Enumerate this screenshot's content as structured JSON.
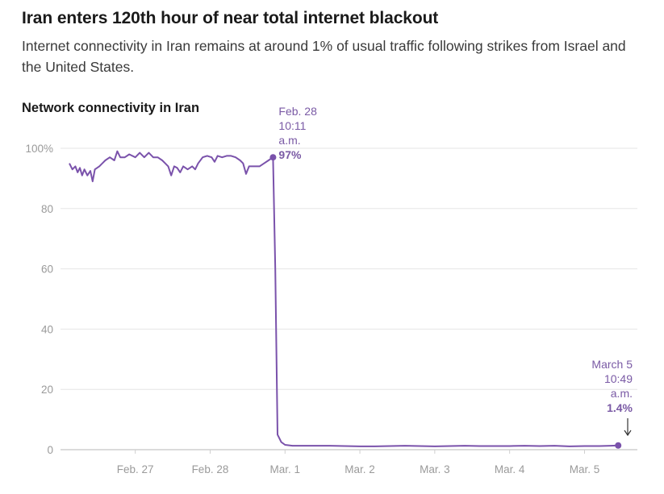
{
  "headline": "Iran enters 120th hour of near total internet blackout",
  "subheadline": "Internet connectivity in Iran remains at around 1% of usual traffic following strikes from Israel and the United States.",
  "colors": {
    "line": "#7a52ab",
    "annotation": "#7a5aa5",
    "grid": "#e6e6e6",
    "axis": "#cfcfcf",
    "tick_text": "#9a9a9a"
  },
  "chart_data": {
    "type": "line",
    "title": "Network connectivity in Iran",
    "xlabel": "",
    "ylabel": "",
    "ylim": [
      0,
      100
    ],
    "y_ticks": [
      0,
      20,
      40,
      60,
      80,
      100
    ],
    "y_tick_labels": [
      "0",
      "20",
      "40",
      "60",
      "80",
      "100%"
    ],
    "x_ticks": [
      {
        "day": 1,
        "label": "Feb. 27"
      },
      {
        "day": 2,
        "label": "Feb. 28"
      },
      {
        "day": 3,
        "label": "Mar. 1"
      },
      {
        "day": 4,
        "label": "Mar. 2"
      },
      {
        "day": 5,
        "label": "Mar. 3"
      },
      {
        "day": 6,
        "label": "Mar. 4"
      },
      {
        "day": 7,
        "label": "Mar. 5"
      }
    ],
    "xlim": [
      0.05,
      7.6
    ],
    "grid": true,
    "series": [
      {
        "points": [
          [
            0.12,
            95
          ],
          [
            0.16,
            93
          ],
          [
            0.2,
            94
          ],
          [
            0.23,
            92
          ],
          [
            0.26,
            93.5
          ],
          [
            0.29,
            91
          ],
          [
            0.32,
            93
          ],
          [
            0.36,
            91
          ],
          [
            0.4,
            92.5
          ],
          [
            0.43,
            89
          ],
          [
            0.46,
            93
          ],
          [
            0.52,
            94
          ],
          [
            0.6,
            96
          ],
          [
            0.66,
            97
          ],
          [
            0.72,
            96
          ],
          [
            0.76,
            99
          ],
          [
            0.8,
            97
          ],
          [
            0.86,
            97
          ],
          [
            0.92,
            98
          ],
          [
            1.0,
            97
          ],
          [
            1.06,
            98.5
          ],
          [
            1.12,
            97
          ],
          [
            1.18,
            98.5
          ],
          [
            1.24,
            97
          ],
          [
            1.3,
            97
          ],
          [
            1.36,
            96
          ],
          [
            1.4,
            95
          ],
          [
            1.44,
            94
          ],
          [
            1.48,
            91
          ],
          [
            1.52,
            94
          ],
          [
            1.56,
            93.5
          ],
          [
            1.6,
            92
          ],
          [
            1.64,
            94
          ],
          [
            1.7,
            93
          ],
          [
            1.76,
            94
          ],
          [
            1.8,
            93
          ],
          [
            1.84,
            95
          ],
          [
            1.9,
            97
          ],
          [
            1.96,
            97.5
          ],
          [
            2.02,
            97
          ],
          [
            2.06,
            95.5
          ],
          [
            2.1,
            97.5
          ],
          [
            2.16,
            97
          ],
          [
            2.22,
            97.5
          ],
          [
            2.28,
            97.5
          ],
          [
            2.34,
            97
          ],
          [
            2.4,
            96
          ],
          [
            2.44,
            95
          ],
          [
            2.48,
            91.5
          ],
          [
            2.52,
            94
          ],
          [
            2.58,
            94
          ],
          [
            2.66,
            94
          ],
          [
            2.72,
            95
          ],
          [
            2.78,
            96
          ],
          [
            2.84,
            97
          ],
          [
            2.87,
            60
          ],
          [
            2.9,
            5
          ],
          [
            2.95,
            2.5
          ],
          [
            3.0,
            1.6
          ],
          [
            3.1,
            1.3
          ],
          [
            3.3,
            1.3
          ],
          [
            3.6,
            1.3
          ],
          [
            3.8,
            1.2
          ],
          [
            4.0,
            1.1
          ],
          [
            4.2,
            1.1
          ],
          [
            4.4,
            1.2
          ],
          [
            4.6,
            1.3
          ],
          [
            4.8,
            1.2
          ],
          [
            5.0,
            1.1
          ],
          [
            5.2,
            1.2
          ],
          [
            5.4,
            1.3
          ],
          [
            5.6,
            1.2
          ],
          [
            5.8,
            1.2
          ],
          [
            6.0,
            1.2
          ],
          [
            6.2,
            1.3
          ],
          [
            6.4,
            1.2
          ],
          [
            6.6,
            1.3
          ],
          [
            6.8,
            1.1
          ],
          [
            7.0,
            1.2
          ],
          [
            7.2,
            1.2
          ],
          [
            7.35,
            1.3
          ],
          [
            7.45,
            1.4
          ]
        ]
      }
    ],
    "annotations": [
      {
        "x": 2.84,
        "y": 97,
        "lines": [
          "Feb. 28",
          "10:11",
          "a.m."
        ],
        "value": "97%",
        "align": "left"
      },
      {
        "x": 7.45,
        "y": 1.4,
        "lines": [
          "March 5",
          "10:49",
          "a.m."
        ],
        "value": "1.4%",
        "align": "right"
      }
    ]
  }
}
